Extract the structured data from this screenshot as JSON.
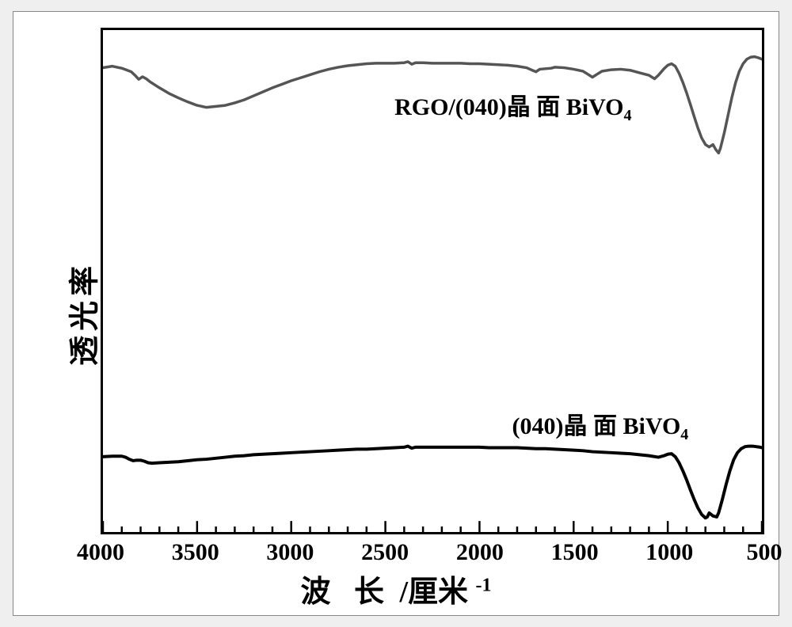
{
  "chart": {
    "type": "line",
    "background_color": "#ffffff",
    "border_color": "#000000",
    "border_width": 3,
    "ylabel": "透光率",
    "xlabel_main": "波 长",
    "xlabel_unit": "/厘米",
    "xlabel_exp": "-1",
    "label_fontsize": 38,
    "ticklabel_fontsize": 30,
    "x_axis": {
      "min": 4000,
      "max": 500,
      "reversed": true,
      "major_ticks": [
        4000,
        3500,
        3000,
        2500,
        2000,
        1500,
        1000,
        500
      ],
      "minor_tick_step": 100,
      "major_tick_len": 14,
      "minor_tick_len": 7,
      "tick_inside": true
    },
    "y_axis": {
      "min": 0,
      "max": 1,
      "ticks": []
    },
    "series": [
      {
        "name": "RGO/(040)",
        "label_prefix": "RGO/(040)",
        "label_mid": "晶 面",
        "label_compound": "BiVO",
        "label_sub": "4",
        "color": "#555555",
        "width": 3.5,
        "label_pos": {
          "x_wn": 2450,
          "y_frac": 0.145
        },
        "points": [
          [
            4000,
            0.075
          ],
          [
            3950,
            0.072
          ],
          [
            3900,
            0.076
          ],
          [
            3850,
            0.083
          ],
          [
            3830,
            0.09
          ],
          [
            3810,
            0.098
          ],
          [
            3790,
            0.093
          ],
          [
            3770,
            0.097
          ],
          [
            3750,
            0.103
          ],
          [
            3700,
            0.115
          ],
          [
            3650,
            0.126
          ],
          [
            3600,
            0.135
          ],
          [
            3550,
            0.143
          ],
          [
            3500,
            0.15
          ],
          [
            3450,
            0.154
          ],
          [
            3400,
            0.152
          ],
          [
            3350,
            0.15
          ],
          [
            3300,
            0.145
          ],
          [
            3250,
            0.139
          ],
          [
            3200,
            0.131
          ],
          [
            3150,
            0.123
          ],
          [
            3100,
            0.115
          ],
          [
            3050,
            0.108
          ],
          [
            3000,
            0.101
          ],
          [
            2950,
            0.095
          ],
          [
            2900,
            0.089
          ],
          [
            2850,
            0.083
          ],
          [
            2800,
            0.078
          ],
          [
            2750,
            0.074
          ],
          [
            2700,
            0.071
          ],
          [
            2650,
            0.069
          ],
          [
            2600,
            0.067
          ],
          [
            2550,
            0.066
          ],
          [
            2500,
            0.066
          ],
          [
            2450,
            0.066
          ],
          [
            2400,
            0.065
          ],
          [
            2380,
            0.063
          ],
          [
            2360,
            0.068
          ],
          [
            2340,
            0.065
          ],
          [
            2300,
            0.065
          ],
          [
            2250,
            0.066
          ],
          [
            2200,
            0.066
          ],
          [
            2150,
            0.066
          ],
          [
            2100,
            0.066
          ],
          [
            2050,
            0.067
          ],
          [
            2000,
            0.067
          ],
          [
            1950,
            0.068
          ],
          [
            1900,
            0.069
          ],
          [
            1850,
            0.07
          ],
          [
            1800,
            0.072
          ],
          [
            1750,
            0.075
          ],
          [
            1720,
            0.08
          ],
          [
            1700,
            0.083
          ],
          [
            1680,
            0.078
          ],
          [
            1650,
            0.077
          ],
          [
            1620,
            0.076
          ],
          [
            1600,
            0.074
          ],
          [
            1550,
            0.075
          ],
          [
            1500,
            0.078
          ],
          [
            1450,
            0.082
          ],
          [
            1420,
            0.089
          ],
          [
            1400,
            0.094
          ],
          [
            1380,
            0.089
          ],
          [
            1350,
            0.082
          ],
          [
            1300,
            0.079
          ],
          [
            1250,
            0.078
          ],
          [
            1200,
            0.08
          ],
          [
            1150,
            0.085
          ],
          [
            1100,
            0.09
          ],
          [
            1070,
            0.097
          ],
          [
            1050,
            0.09
          ],
          [
            1020,
            0.077
          ],
          [
            1000,
            0.07
          ],
          [
            980,
            0.067
          ],
          [
            960,
            0.072
          ],
          [
            940,
            0.086
          ],
          [
            920,
            0.104
          ],
          [
            900,
            0.125
          ],
          [
            880,
            0.148
          ],
          [
            860,
            0.172
          ],
          [
            840,
            0.195
          ],
          [
            820,
            0.215
          ],
          [
            800,
            0.228
          ],
          [
            780,
            0.233
          ],
          [
            760,
            0.228
          ],
          [
            745,
            0.238
          ],
          [
            730,
            0.245
          ],
          [
            720,
            0.235
          ],
          [
            700,
            0.205
          ],
          [
            680,
            0.17
          ],
          [
            660,
            0.135
          ],
          [
            640,
            0.105
          ],
          [
            620,
            0.082
          ],
          [
            600,
            0.067
          ],
          [
            580,
            0.058
          ],
          [
            560,
            0.054
          ],
          [
            540,
            0.053
          ],
          [
            520,
            0.055
          ],
          [
            500,
            0.058
          ]
        ]
      },
      {
        "name": "(040)",
        "label_prefix": "(040)",
        "label_mid": "晶 面",
        "label_compound": "BiVO",
        "label_sub": "4",
        "color": "#000000",
        "width": 4,
        "label_pos": {
          "x_wn": 1830,
          "y_frac": 0.775
        },
        "points": [
          [
            4000,
            0.85
          ],
          [
            3950,
            0.849
          ],
          [
            3900,
            0.849
          ],
          [
            3880,
            0.851
          ],
          [
            3860,
            0.855
          ],
          [
            3840,
            0.858
          ],
          [
            3820,
            0.857
          ],
          [
            3800,
            0.857
          ],
          [
            3780,
            0.859
          ],
          [
            3760,
            0.862
          ],
          [
            3740,
            0.863
          ],
          [
            3700,
            0.862
          ],
          [
            3650,
            0.861
          ],
          [
            3600,
            0.86
          ],
          [
            3550,
            0.858
          ],
          [
            3500,
            0.856
          ],
          [
            3450,
            0.855
          ],
          [
            3400,
            0.853
          ],
          [
            3350,
            0.851
          ],
          [
            3300,
            0.849
          ],
          [
            3250,
            0.848
          ],
          [
            3200,
            0.846
          ],
          [
            3150,
            0.845
          ],
          [
            3100,
            0.844
          ],
          [
            3050,
            0.843
          ],
          [
            3000,
            0.842
          ],
          [
            2950,
            0.841
          ],
          [
            2900,
            0.84
          ],
          [
            2850,
            0.839
          ],
          [
            2800,
            0.838
          ],
          [
            2750,
            0.837
          ],
          [
            2700,
            0.836
          ],
          [
            2650,
            0.835
          ],
          [
            2600,
            0.835
          ],
          [
            2550,
            0.834
          ],
          [
            2500,
            0.833
          ],
          [
            2450,
            0.832
          ],
          [
            2400,
            0.831
          ],
          [
            2380,
            0.829
          ],
          [
            2360,
            0.833
          ],
          [
            2340,
            0.831
          ],
          [
            2300,
            0.831
          ],
          [
            2250,
            0.831
          ],
          [
            2200,
            0.831
          ],
          [
            2150,
            0.831
          ],
          [
            2100,
            0.831
          ],
          [
            2050,
            0.831
          ],
          [
            2000,
            0.831
          ],
          [
            1950,
            0.832
          ],
          [
            1900,
            0.832
          ],
          [
            1850,
            0.832
          ],
          [
            1800,
            0.832
          ],
          [
            1750,
            0.833
          ],
          [
            1700,
            0.834
          ],
          [
            1650,
            0.834
          ],
          [
            1600,
            0.835
          ],
          [
            1550,
            0.836
          ],
          [
            1500,
            0.837
          ],
          [
            1450,
            0.838
          ],
          [
            1400,
            0.84
          ],
          [
            1350,
            0.841
          ],
          [
            1300,
            0.842
          ],
          [
            1250,
            0.843
          ],
          [
            1200,
            0.844
          ],
          [
            1150,
            0.846
          ],
          [
            1100,
            0.848
          ],
          [
            1050,
            0.851
          ],
          [
            1020,
            0.848
          ],
          [
            1000,
            0.845
          ],
          [
            980,
            0.844
          ],
          [
            960,
            0.85
          ],
          [
            940,
            0.862
          ],
          [
            920,
            0.878
          ],
          [
            900,
            0.896
          ],
          [
            880,
            0.916
          ],
          [
            860,
            0.935
          ],
          [
            840,
            0.952
          ],
          [
            820,
            0.965
          ],
          [
            800,
            0.972
          ],
          [
            790,
            0.97
          ],
          [
            780,
            0.962
          ],
          [
            760,
            0.968
          ],
          [
            740,
            0.97
          ],
          [
            730,
            0.962
          ],
          [
            710,
            0.935
          ],
          [
            690,
            0.905
          ],
          [
            670,
            0.878
          ],
          [
            650,
            0.856
          ],
          [
            630,
            0.842
          ],
          [
            610,
            0.834
          ],
          [
            590,
            0.83
          ],
          [
            570,
            0.829
          ],
          [
            550,
            0.829
          ],
          [
            530,
            0.83
          ],
          [
            510,
            0.831
          ],
          [
            500,
            0.832
          ]
        ]
      }
    ]
  }
}
